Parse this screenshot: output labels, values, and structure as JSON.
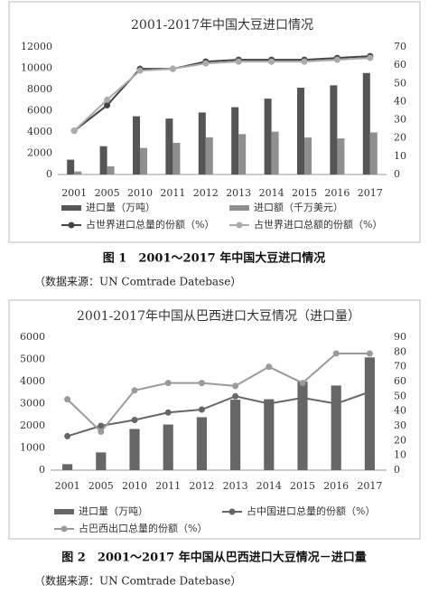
{
  "chart_data": [
    {
      "type": "bar",
      "title": "2001-2017年中国大豆进口情况",
      "categories": [
        "2001",
        "2005",
        "2010",
        "2011",
        "2012",
        "2013",
        "2014",
        "2015",
        "2016",
        "2017"
      ],
      "series": [
        {
          "name": "进口量（万吨）",
          "type": "bar",
          "color": "#555555",
          "values": [
            1394,
            2659,
            5480,
            5264,
            5838,
            6338,
            7140,
            8169,
            8391,
            9553
          ]
        },
        {
          "name": "进口额（千万美元）",
          "type": "bar",
          "color": "#8f8f8f",
          "values": [
            280,
            770,
            2500,
            2980,
            3500,
            3800,
            4030,
            3480,
            3400,
            3960
          ]
        },
        {
          "name": "占世界进口总量的份额（%）",
          "type": "line",
          "axis": "y2",
          "color": "#444444",
          "values": [
            24,
            38,
            58,
            58,
            62,
            63,
            63,
            63,
            64,
            65
          ]
        },
        {
          "name": "占世界进口总额的份额（%）",
          "type": "line",
          "axis": "y2",
          "color": "#ababab",
          "values": [
            24,
            41,
            57,
            58,
            61,
            62,
            62,
            62,
            63,
            64
          ]
        }
      ],
      "ylim": [
        0,
        12000
      ],
      "yticks": [
        0,
        2000,
        4000,
        6000,
        8000,
        10000,
        12000
      ],
      "y2lim": [
        0,
        70
      ],
      "y2ticks": [
        0,
        10,
        20,
        30,
        40,
        50,
        60,
        70
      ],
      "grid": false,
      "legend": "bottom"
    },
    {
      "type": "bar",
      "title": "2001-2017年中国从巴西进口大豆情况（进口量）",
      "categories": [
        "2001",
        "2005",
        "2010",
        "2011",
        "2012",
        "2013",
        "2014",
        "2015",
        "2016",
        "2017"
      ],
      "series": [
        {
          "name": "进口量（万吨）",
          "type": "bar",
          "color": "#666666",
          "values": [
            270,
            800,
            1860,
            2060,
            2390,
            3180,
            3200,
            4000,
            3820,
            5090
          ]
        },
        {
          "name": "占中国进口总量的份额（%）",
          "type": "line",
          "axis": "y2",
          "color": "#666666",
          "values": [
            23,
            30,
            34,
            39,
            41,
            50,
            45,
            49,
            45,
            53
          ]
        },
        {
          "name": "占巴西出口总量的份额（%）",
          "type": "line",
          "axis": "y2",
          "color": "#9a9a9a",
          "values": [
            48,
            26,
            54,
            59,
            59,
            57,
            70,
            59,
            79,
            79
          ]
        }
      ],
      "ylim": [
        0,
        6000
      ],
      "yticks": [
        0,
        1000,
        2000,
        3000,
        4000,
        5000,
        6000
      ],
      "y2lim": [
        0,
        90
      ],
      "y2ticks": [
        0,
        10,
        20,
        30,
        40,
        50,
        60,
        70,
        80,
        90
      ],
      "grid": false,
      "legend": "bottom"
    }
  ],
  "captions": [
    {
      "figure": "图 1　2001～2017 年中国大豆进口情况",
      "source": "（数据来源：UN Comtrade Datebase）"
    },
    {
      "figure": "图 2　2001～2017 年中国从巴西进口大豆情况－进口量",
      "source": "（数据来源：UN Comtrade Datebase）"
    }
  ]
}
